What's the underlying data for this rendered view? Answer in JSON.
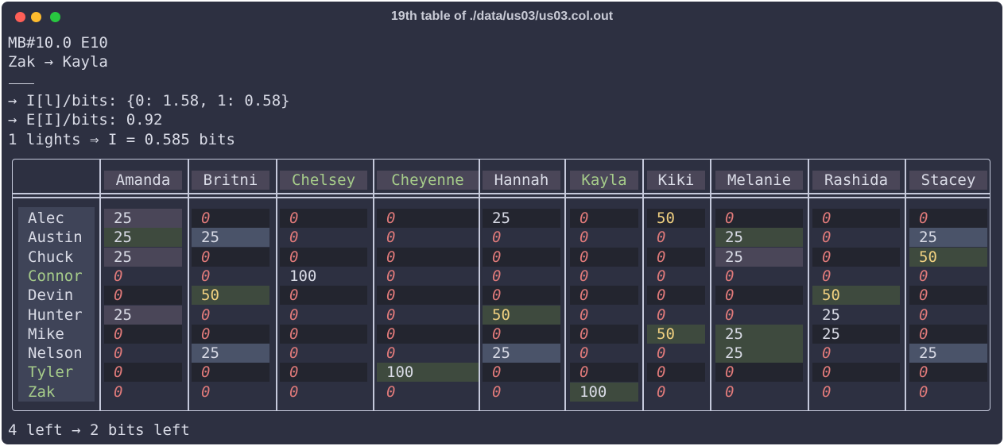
{
  "window": {
    "title": "19th table of ./data/us03/us03.col.out"
  },
  "header_lines": {
    "line1": "MB#10.0 E10",
    "line2": "Zak → Kayla",
    "line3": "→ I[l]/bits: {0: 1.58, 1: 0.58}",
    "line4": "→ E[I]/bits: 0.92",
    "line5": "1 lights ⇒ I = 0.585 bits"
  },
  "footer": "4 left → 2 bits left",
  "columns": [
    "Amanda",
    "Britni",
    "Chelsey",
    "Cheyenne",
    "Hannah",
    "Kayla",
    "Kiki",
    "Melanie",
    "Rashida",
    "Stacey"
  ],
  "rows": [
    {
      "name": "Alec",
      "values": [
        "25",
        "0",
        "0",
        "0",
        "25",
        "0",
        "50",
        "0",
        "0",
        "0"
      ]
    },
    {
      "name": "Austin",
      "values": [
        "25",
        "25",
        "0",
        "0",
        "0",
        "0",
        "0",
        "25",
        "0",
        "25"
      ]
    },
    {
      "name": "Chuck",
      "values": [
        "25",
        "0",
        "0",
        "0",
        "0",
        "0",
        "0",
        "25",
        "0",
        "50"
      ]
    },
    {
      "name": "Connor",
      "values": [
        "0",
        "0",
        "100",
        "0",
        "0",
        "0",
        "0",
        "0",
        "0",
        "0"
      ]
    },
    {
      "name": "Devin",
      "values": [
        "0",
        "50",
        "0",
        "0",
        "0",
        "0",
        "0",
        "0",
        "50",
        "0"
      ]
    },
    {
      "name": "Hunter",
      "values": [
        "25",
        "0",
        "0",
        "0",
        "50",
        "0",
        "0",
        "0",
        "25",
        "0"
      ]
    },
    {
      "name": "Mike",
      "values": [
        "0",
        "0",
        "0",
        "0",
        "0",
        "0",
        "50",
        "25",
        "25",
        "0"
      ]
    },
    {
      "name": "Nelson",
      "values": [
        "0",
        "25",
        "0",
        "0",
        "25",
        "0",
        "0",
        "25",
        "0",
        "25"
      ]
    },
    {
      "name": "Tyler",
      "values": [
        "0",
        "0",
        "0",
        "100",
        "0",
        "0",
        "0",
        "0",
        "0",
        "0"
      ]
    },
    {
      "name": "Zak",
      "values": [
        "0",
        "0",
        "0",
        "0",
        "0",
        "100",
        "0",
        "0",
        "0",
        "0"
      ]
    }
  ],
  "colors": {
    "zero": "#e07a7a",
    "fifty": "#f0d080",
    "highlight_name": "#a6cc8a",
    "text": "#d9dbe6"
  }
}
